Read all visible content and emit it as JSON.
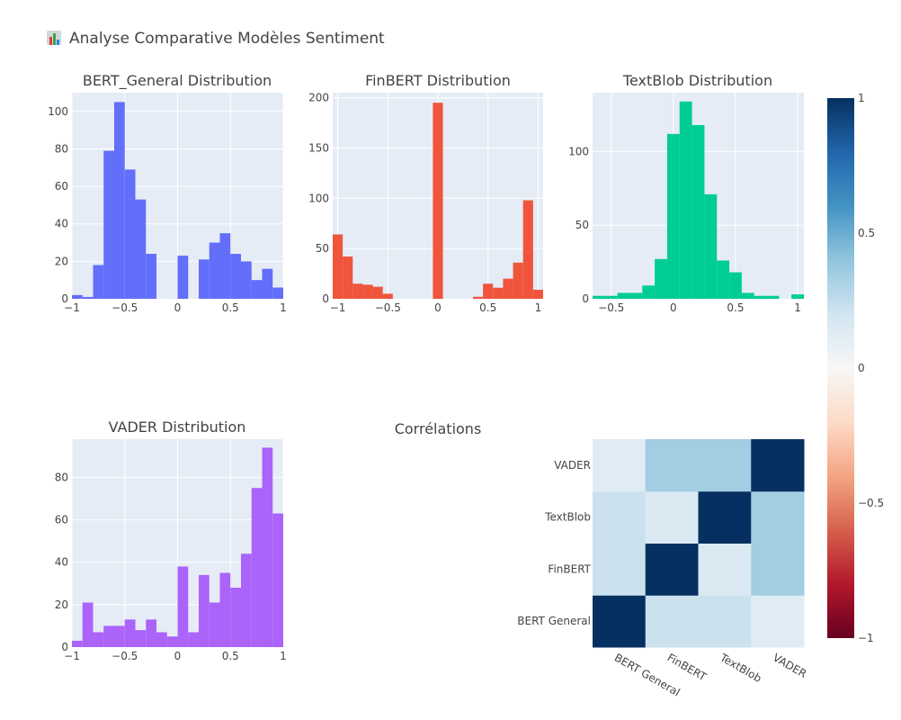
{
  "title": "Analyse Comparative Modèles Sentiment",
  "title_icon": "bar-chart-emoji-icon",
  "chart_data": [
    {
      "type": "bar",
      "title": "BERT_General Distribution",
      "color": "#636efa",
      "xlim": [
        -1,
        1
      ],
      "ylim": [
        0,
        110
      ],
      "bin_width": 0.1,
      "x": [
        -0.95,
        -0.85,
        -0.75,
        -0.65,
        -0.55,
        -0.45,
        -0.35,
        -0.25,
        -0.15,
        -0.05,
        0.05,
        0.15,
        0.25,
        0.35,
        0.45,
        0.55,
        0.65,
        0.75,
        0.85,
        0.95
      ],
      "values": [
        2,
        1,
        18,
        79,
        105,
        69,
        53,
        24,
        0,
        0,
        23,
        0,
        21,
        30,
        35,
        24,
        20,
        10,
        16,
        6
      ],
      "xticks": [
        -1,
        -0.5,
        0,
        0.5,
        1
      ],
      "xtick_labels": [
        "−1",
        "−0.5",
        "0",
        "0.5",
        "1"
      ],
      "yticks": [
        0,
        20,
        40,
        60,
        80,
        100
      ],
      "ytick_labels": [
        "0",
        "20",
        "40",
        "60",
        "80",
        "100"
      ]
    },
    {
      "type": "bar",
      "title": "FinBERT Distribution",
      "color": "#ef553b",
      "xlim": [
        -1.05,
        1.05
      ],
      "ylim": [
        0,
        205
      ],
      "bin_width": 0.1,
      "x": [
        -1.0,
        -0.9,
        -0.8,
        -0.7,
        -0.6,
        -0.5,
        -0.4,
        -0.3,
        -0.2,
        -0.1,
        0.0,
        0.1,
        0.2,
        0.3,
        0.4,
        0.5,
        0.6,
        0.7,
        0.8,
        0.9,
        1.0
      ],
      "values": [
        64,
        42,
        15,
        14,
        12,
        5,
        0,
        0,
        0,
        0,
        195,
        0,
        0,
        0,
        2,
        15,
        11,
        20,
        36,
        98,
        9
      ],
      "xticks": [
        -1,
        -0.5,
        0,
        0.5,
        1
      ],
      "xtick_labels": [
        "−1",
        "−0.5",
        "0",
        "0.5",
        "1"
      ],
      "yticks": [
        0,
        50,
        100,
        150,
        200
      ],
      "ytick_labels": [
        "0",
        "50",
        "100",
        "150",
        "200"
      ]
    },
    {
      "type": "bar",
      "title": "TextBlob Distribution",
      "color": "#00cc96",
      "xlim": [
        -0.65,
        1.05
      ],
      "ylim": [
        0,
        140
      ],
      "bin_width": 0.1,
      "x": [
        -0.6,
        -0.5,
        -0.4,
        -0.3,
        -0.2,
        -0.1,
        0.0,
        0.1,
        0.2,
        0.3,
        0.4,
        0.5,
        0.6,
        0.7,
        0.8,
        0.9,
        1.0
      ],
      "values": [
        2,
        2,
        4,
        4,
        9,
        27,
        112,
        134,
        118,
        71,
        26,
        18,
        4,
        2,
        2,
        0,
        3
      ],
      "xticks": [
        -0.5,
        0,
        0.5,
        1
      ],
      "xtick_labels": [
        "−0.5",
        "0",
        "0.5",
        "1"
      ],
      "yticks": [
        0,
        50,
        100
      ],
      "ytick_labels": [
        "0",
        "50",
        "100"
      ]
    },
    {
      "type": "bar",
      "title": "VADER Distribution",
      "color": "#ab63fa",
      "xlim": [
        -1,
        1
      ],
      "ylim": [
        0,
        98
      ],
      "bin_width": 0.1,
      "x": [
        -0.95,
        -0.85,
        -0.75,
        -0.65,
        -0.55,
        -0.45,
        -0.35,
        -0.25,
        -0.15,
        -0.05,
        0.05,
        0.15,
        0.25,
        0.35,
        0.45,
        0.55,
        0.65,
        0.75,
        0.85,
        0.95
      ],
      "values": [
        3,
        21,
        7,
        10,
        10,
        13,
        8,
        13,
        7,
        5,
        38,
        7,
        34,
        21,
        35,
        28,
        44,
        75,
        94,
        63
      ],
      "xticks": [
        -1,
        -0.5,
        0,
        0.5,
        1
      ],
      "xtick_labels": [
        "−1",
        "−0.5",
        "0",
        "0.5",
        "1"
      ],
      "yticks": [
        0,
        20,
        40,
        60,
        80
      ],
      "ytick_labels": [
        "0",
        "20",
        "40",
        "60",
        "80"
      ]
    },
    {
      "type": "heatmap",
      "title": "Corrélations",
      "x": [
        "BERT_General",
        "FinBERT",
        "TextBlob",
        "VADER"
      ],
      "y": [
        "BERT_General",
        "FinBERT",
        "TextBlob",
        "VADER"
      ],
      "x_labels": [
        "BERT General",
        "FinBERT",
        "TextBlob",
        "VADER"
      ],
      "y_labels": [
        "BERT General",
        "FinBERT",
        "TextBlob",
        "VADER"
      ],
      "z": [
        [
          1.0,
          0.22,
          0.22,
          0.12
        ],
        [
          0.22,
          1.0,
          0.15,
          0.35
        ],
        [
          0.22,
          0.15,
          1.0,
          0.35
        ],
        [
          0.12,
          0.35,
          0.35,
          1.0
        ]
      ],
      "colorscale": "RdBu",
      "zlim": [
        -1,
        1
      ],
      "colorbar_ticks": [
        1,
        0.5,
        0,
        -0.5,
        -1
      ],
      "colorbar_tick_labels": [
        "1",
        "0.5",
        "0",
        "−0.5",
        "−1"
      ]
    }
  ]
}
